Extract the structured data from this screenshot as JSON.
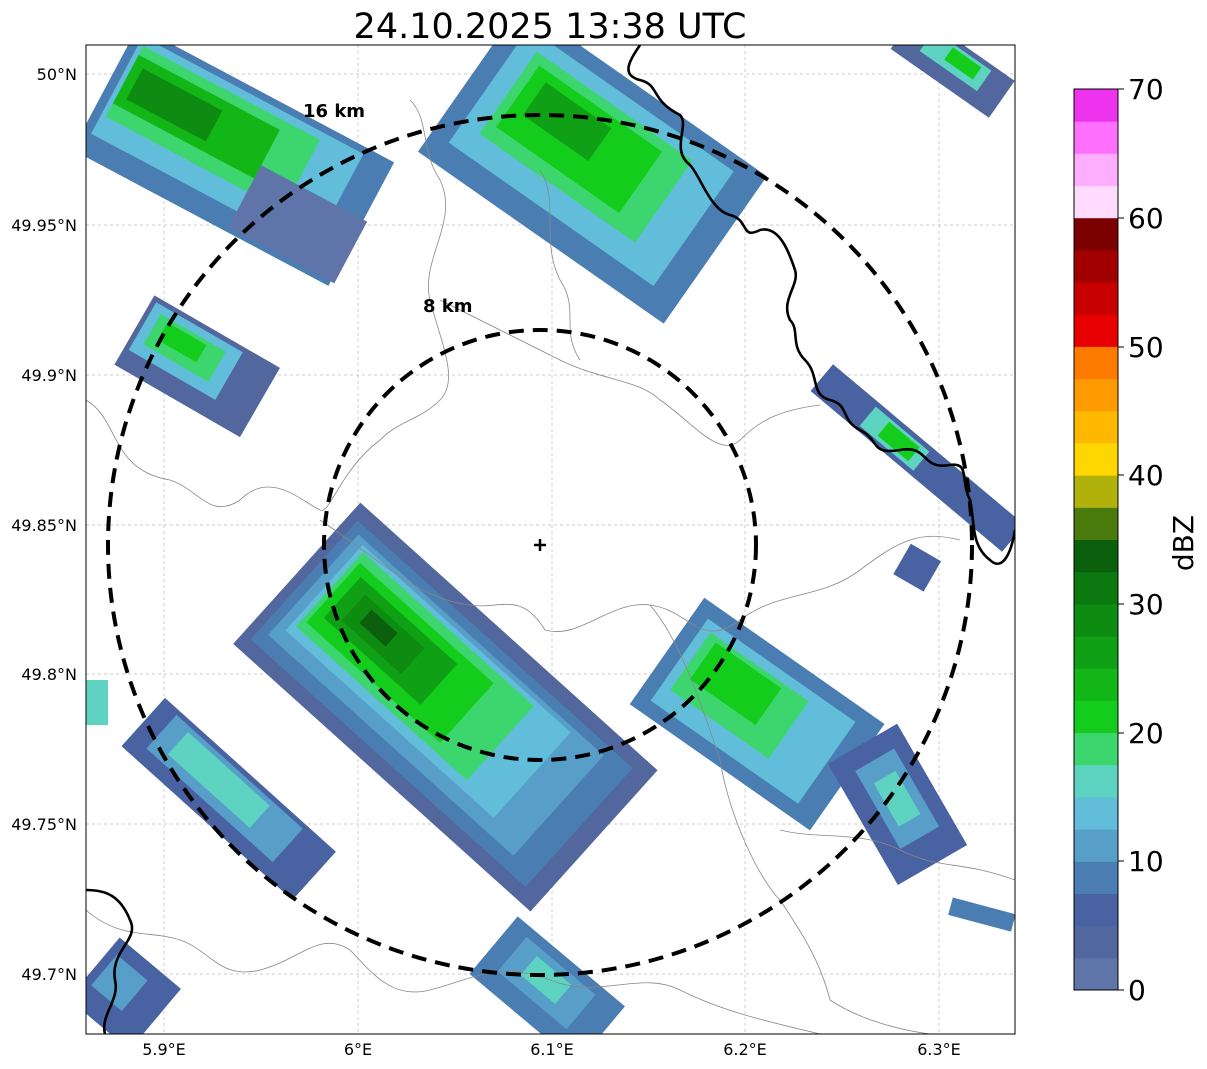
{
  "title": "24.10.2025 13:38 UTC",
  "x_ticks": [
    "5.9°E",
    "6°E",
    "6.1°E",
    "6.2°E",
    "6.3°E"
  ],
  "y_ticks": [
    "50°N",
    "49.95°N",
    "49.9°N",
    "49.85°N",
    "49.8°N",
    "49.75°N",
    "49.7°N"
  ],
  "range_rings": [
    {
      "label": "16 km",
      "radius_km": 16
    },
    {
      "label": "8 km",
      "radius_km": 8
    }
  ],
  "radar_site": {
    "lon": 6.092,
    "lat": 49.843
  },
  "map_extent": {
    "lon": [
      5.86,
      6.34
    ],
    "lat": [
      49.68,
      50.01
    ]
  },
  "colorbar": {
    "label": "dBZ",
    "tick_labels": [
      "0",
      "10",
      "20",
      "30",
      "40",
      "50",
      "60",
      "70"
    ],
    "colors": [
      "#5f74a8",
      "#52679e",
      "#4862a2",
      "#4a7db2",
      "#579fc8",
      "#62bddb",
      "#5fd3c2",
      "#3dd66e",
      "#13cc1b",
      "#12b617",
      "#0fa015",
      "#0e8c12",
      "#0b7810",
      "#0b5f0d",
      "#4a7a0c",
      "#b0b10a",
      "#ffd700",
      "#ffb800",
      "#ff9b00",
      "#ff7b00",
      "#e60000",
      "#c80000",
      "#a00000",
      "#7b0000",
      "#ffdcff",
      "#ffadff",
      "#ff70ff",
      "#ee33ee"
    ]
  }
}
